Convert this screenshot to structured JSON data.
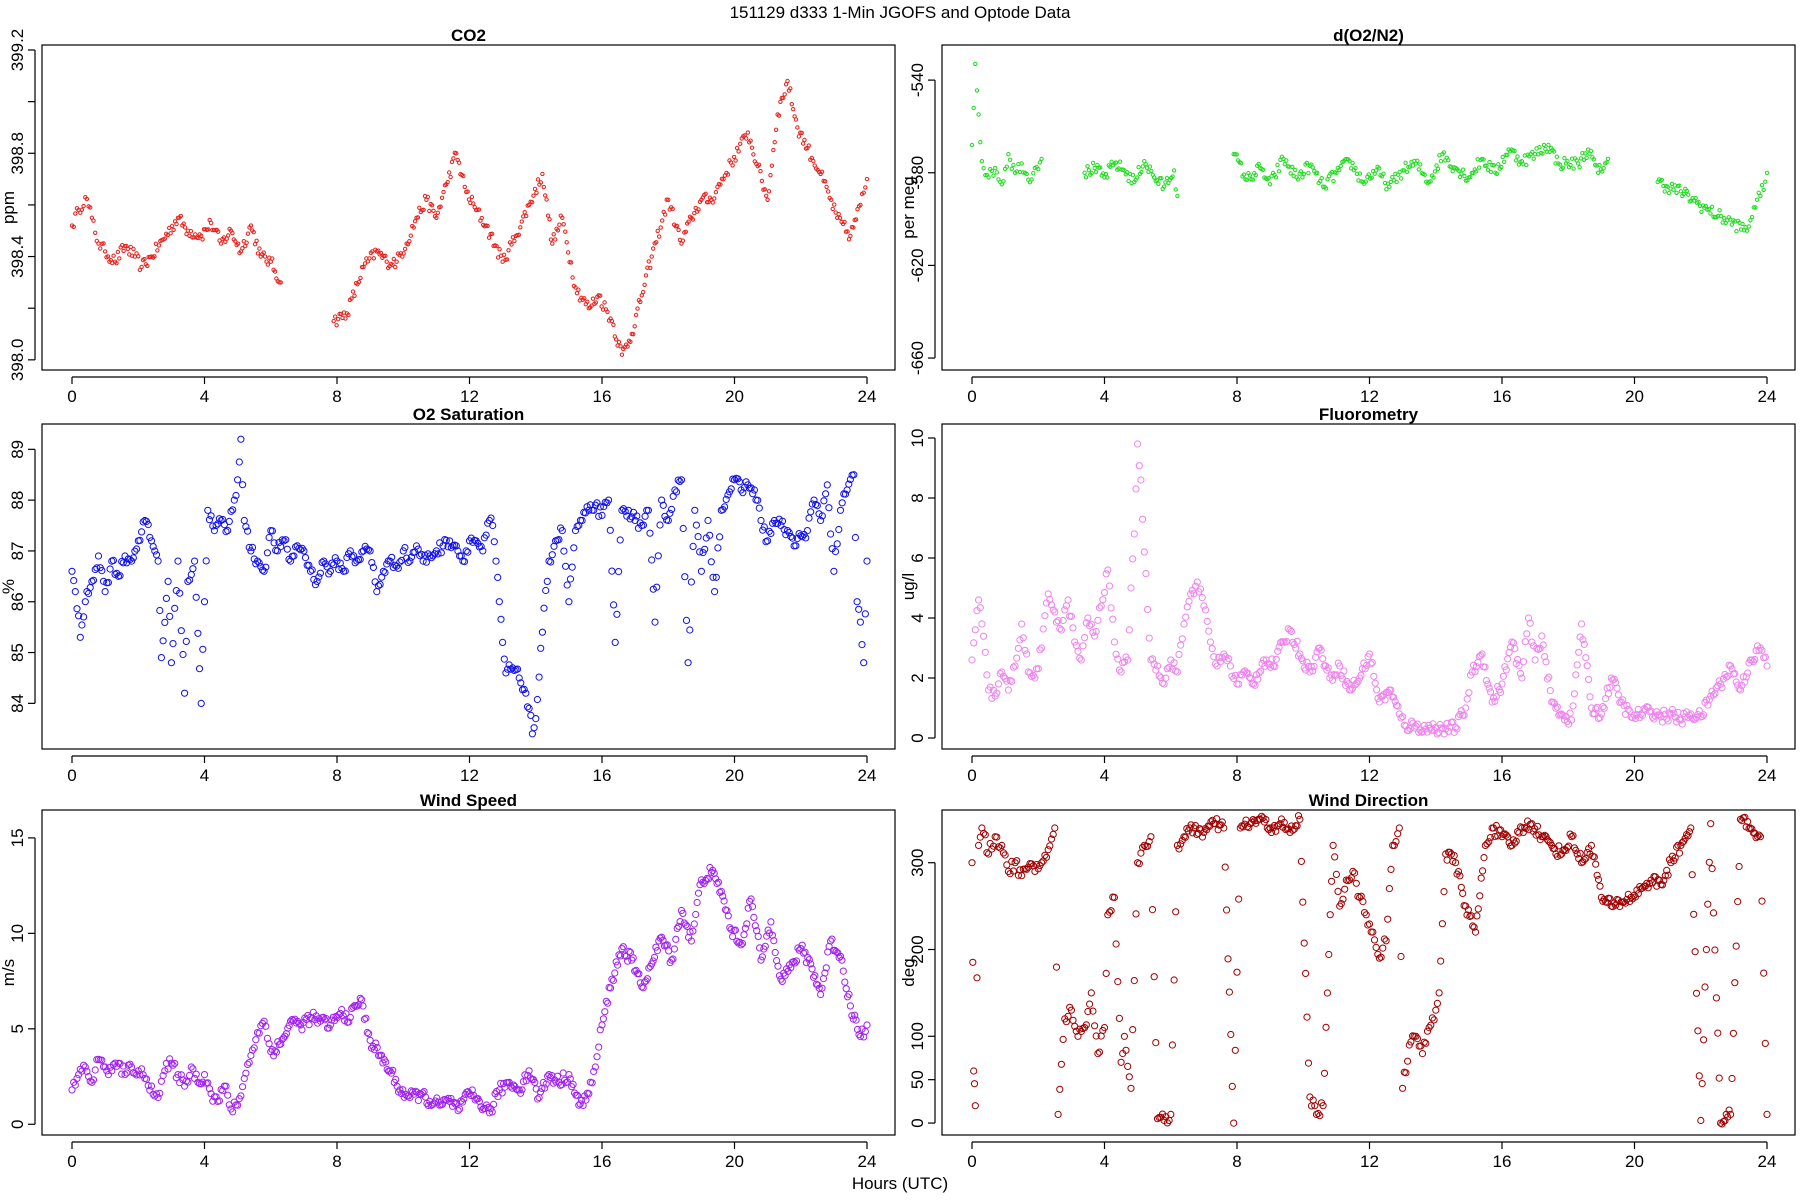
{
  "figure": {
    "title": "151129   d333   1-Min  JGOFS and Optode Data",
    "xlabel": "Hours (UTC)"
  },
  "chart_data": [
    {
      "id": "co2",
      "type": "scatter",
      "title": "CO2",
      "ylabel": "ppm",
      "color": "#e8201c",
      "xlim": [
        0,
        24
      ],
      "ylim": [
        397.98,
        399.2
      ],
      "xticks": [
        0,
        4,
        8,
        12,
        16,
        20,
        24
      ],
      "yticks": [
        398.0,
        398.2,
        398.4,
        398.6,
        398.8,
        399.0,
        399.2
      ],
      "yticklabels": [
        "398.0",
        "",
        "398.4",
        "",
        "398.8",
        "",
        "399.2"
      ],
      "x": [
        0,
        0.2,
        0.4,
        0.6,
        0.8,
        1.0,
        1.3,
        1.6,
        1.9,
        2.1,
        2.4,
        3.2,
        3.5,
        3.9,
        4.2,
        4.5,
        4.8,
        5.1,
        5.4,
        5.7,
        6.0,
        6.3,
        7.9,
        8.3,
        8.8,
        9.2,
        9.5,
        9.8,
        10.1,
        10.4,
        10.7,
        11.0,
        11.3,
        11.6,
        11.9,
        12.2,
        12.5,
        13.0,
        13.4,
        13.8,
        14.2,
        14.5,
        14.8,
        15.2,
        15.6,
        15.9,
        16.3,
        16.6,
        16.9,
        17.2,
        17.5,
        18.0,
        18.4,
        18.7,
        19.0,
        19.3,
        20.4,
        20.7,
        21.0,
        21.3,
        21.6,
        21.9,
        22.2,
        22.6,
        23.1,
        23.5,
        23.8,
        24.0
      ],
      "values": [
        398.52,
        398.58,
        398.63,
        398.55,
        398.45,
        398.42,
        398.38,
        398.44,
        398.4,
        398.36,
        398.4,
        398.55,
        398.5,
        398.48,
        398.53,
        398.45,
        398.5,
        398.42,
        398.52,
        398.4,
        398.38,
        398.3,
        398.15,
        398.18,
        398.36,
        398.42,
        398.38,
        398.38,
        398.45,
        398.55,
        398.62,
        398.55,
        398.68,
        398.8,
        398.65,
        398.58,
        398.52,
        398.38,
        398.48,
        398.6,
        398.72,
        398.45,
        398.55,
        398.28,
        398.2,
        398.25,
        398.15,
        398.02,
        398.1,
        398.25,
        398.4,
        398.62,
        398.45,
        398.55,
        398.62,
        398.62,
        398.88,
        398.75,
        398.62,
        398.95,
        399.08,
        398.9,
        398.82,
        398.72,
        398.55,
        398.48,
        398.6,
        398.7
      ]
    },
    {
      "id": "o2n2",
      "type": "scatter",
      "title": "d(O2/N2)",
      "ylabel": "per meg",
      "color": "#1fdb1f",
      "xlim": [
        0,
        24
      ],
      "ylim": [
        -663,
        -527
      ],
      "xticks": [
        0,
        4,
        8,
        12,
        16,
        20,
        24
      ],
      "yticks": [
        -540,
        -580,
        -620,
        -660
      ],
      "yticklabels": [
        "-540",
        "-580",
        "-620",
        "-660"
      ],
      "x": [
        0,
        0.1,
        0.3,
        0.5,
        0.7,
        0.9,
        1.1,
        1.3,
        1.5,
        1.7,
        1.9,
        2.1,
        3.4,
        3.7,
        4.0,
        4.3,
        4.6,
        4.9,
        5.2,
        5.5,
        5.8,
        6.1,
        6.2,
        7.9,
        8.3,
        8.7,
        9.0,
        9.4,
        9.8,
        10.2,
        10.6,
        11.0,
        11.4,
        11.8,
        12.2,
        12.6,
        13.0,
        13.4,
        13.8,
        14.2,
        14.6,
        15.0,
        15.4,
        15.8,
        16.2,
        16.6,
        17.0,
        17.4,
        17.7,
        18.3,
        18.6,
        18.9,
        19.2,
        20.7,
        21.0,
        21.4,
        21.8,
        22.2,
        23.4,
        23.6,
        23.8,
        24.0
      ],
      "values": [
        -568,
        -533,
        -575,
        -582,
        -578,
        -585,
        -572,
        -580,
        -576,
        -583,
        -578,
        -574,
        -580,
        -578,
        -582,
        -576,
        -579,
        -584,
        -575,
        -582,
        -586,
        -579,
        -590,
        -572,
        -583,
        -578,
        -585,
        -574,
        -582,
        -577,
        -586,
        -580,
        -575,
        -584,
        -579,
        -586,
        -579,
        -576,
        -584,
        -572,
        -578,
        -582,
        -574,
        -580,
        -570,
        -575,
        -572,
        -568,
        -576,
        -576,
        -570,
        -580,
        -574,
        -584,
        -586,
        -588,
        -592,
        -596,
        -605,
        -595,
        -590,
        -580
      ]
    },
    {
      "id": "o2sat",
      "type": "scatter",
      "title": "O2 Saturation",
      "ylabel": "%",
      "color": "#1010ee",
      "xlim": [
        0,
        24
      ],
      "ylim": [
        83.2,
        89.4
      ],
      "xticks": [
        0,
        4,
        8,
        12,
        16,
        20,
        24
      ],
      "yticks": [
        84,
        85,
        86,
        87,
        88,
        89
      ],
      "yticklabels": [
        "84",
        "85",
        "86",
        "87",
        "88",
        "89"
      ],
      "x": [
        0,
        0.1,
        0.25,
        0.4,
        0.6,
        0.8,
        1.0,
        1.2,
        1.4,
        1.6,
        1.8,
        2.0,
        2.2,
        2.4,
        2.6,
        2.7,
        2.9,
        3.0,
        3.2,
        3.4,
        3.5,
        3.7,
        3.9,
        4.0,
        4.1,
        4.3,
        4.5,
        4.7,
        4.9,
        5.0,
        5.1,
        5.2,
        5.4,
        5.6,
        5.8,
        6.0,
        6.2,
        6.4,
        6.6,
        6.8,
        7.0,
        7.2,
        7.4,
        7.6,
        7.8,
        8.0,
        8.2,
        8.4,
        8.6,
        8.8,
        9.0,
        9.2,
        9.4,
        9.6,
        9.8,
        10.0,
        10.2,
        10.4,
        10.6,
        10.8,
        11.0,
        11.2,
        11.4,
        11.6,
        11.8,
        12.0,
        12.2,
        12.4,
        12.6,
        12.7,
        12.8,
        12.9,
        13.0,
        13.1,
        13.3,
        13.5,
        13.7,
        13.8,
        13.9,
        14.0,
        14.2,
        14.4,
        14.6,
        14.8,
        15.0,
        15.2,
        15.4,
        15.6,
        15.8,
        16.0,
        16.2,
        16.4,
        16.6,
        16.8,
        17.0,
        17.2,
        17.4,
        17.6,
        17.8,
        18.0,
        18.2,
        18.4,
        18.6,
        18.8,
        19.0,
        19.2,
        19.4,
        19.6,
        19.8,
        20.0,
        20.2,
        20.4,
        20.6,
        20.8,
        21.0,
        21.2,
        21.4,
        21.6,
        21.8,
        22.0,
        22.2,
        22.4,
        22.6,
        22.8,
        23.0,
        23.2,
        23.4,
        23.6,
        23.7,
        23.8,
        23.9,
        24.0
      ],
      "values": [
        86.6,
        86.2,
        85.3,
        86.0,
        86.4,
        86.9,
        86.2,
        86.8,
        86.5,
        86.9,
        86.8,
        87.2,
        87.6,
        87.2,
        86.8,
        84.9,
        86.4,
        84.8,
        86.8,
        84.2,
        86.4,
        86.8,
        84.0,
        86.0,
        87.8,
        87.4,
        87.6,
        87.4,
        88.0,
        88.4,
        89.2,
        87.6,
        87.0,
        86.8,
        86.6,
        87.4,
        87.0,
        87.2,
        86.8,
        87.1,
        87.0,
        86.6,
        86.4,
        86.8,
        86.6,
        86.8,
        86.6,
        87.0,
        86.8,
        87.0,
        87.0,
        86.2,
        86.6,
        86.8,
        86.7,
        87.0,
        86.8,
        87.1,
        86.8,
        86.9,
        87.0,
        87.1,
        87.2,
        87.1,
        86.8,
        87.2,
        87.2,
        87.0,
        87.6,
        87.5,
        86.8,
        86.0,
        85.2,
        84.6,
        84.7,
        84.5,
        84.2,
        83.9,
        83.4,
        83.7,
        85.4,
        86.8,
        87.2,
        87.4,
        86.0,
        87.4,
        87.6,
        87.8,
        87.9,
        87.7,
        88.0,
        85.2,
        87.8,
        87.8,
        87.6,
        87.5,
        87.8,
        85.6,
        88.0,
        87.6,
        88.2,
        88.4,
        84.8,
        87.8,
        86.6,
        87.6,
        86.2,
        87.8,
        88.1,
        88.4,
        88.2,
        88.3,
        88.2,
        87.6,
        87.2,
        87.6,
        87.5,
        87.4,
        87.1,
        87.3,
        87.4,
        88.0,
        87.6,
        88.3,
        86.6,
        87.8,
        88.2,
        88.5,
        86.0,
        85.6,
        84.8,
        86.8
      ]
    },
    {
      "id": "fluor",
      "type": "scatter",
      "title": "Fluorometry",
      "ylabel": "ug/l",
      "color": "#ee82ee",
      "xlim": [
        0,
        24
      ],
      "ylim": [
        -0.2,
        10.3
      ],
      "xticks": [
        0,
        4,
        8,
        12,
        16,
        20,
        24
      ],
      "yticks": [
        0,
        2,
        4,
        6,
        8,
        10
      ],
      "yticklabels": [
        "0",
        "2",
        "4",
        "6",
        "8",
        "10"
      ],
      "x": [
        0,
        0.2,
        0.3,
        0.5,
        0.7,
        0.9,
        1.1,
        1.3,
        1.5,
        1.7,
        1.9,
        2.1,
        2.3,
        2.5,
        2.7,
        2.9,
        3.1,
        3.3,
        3.5,
        3.7,
        3.9,
        4.1,
        4.3,
        4.5,
        4.7,
        4.8,
        4.9,
        5.0,
        5.1,
        5.2,
        5.4,
        5.6,
        5.8,
        6.0,
        6.2,
        6.4,
        6.6,
        6.8,
        7.0,
        7.2,
        7.4,
        7.6,
        7.8,
        8.0,
        8.2,
        8.5,
        8.8,
        9.1,
        9.4,
        9.6,
        9.9,
        10.2,
        10.5,
        10.8,
        11.1,
        11.4,
        11.7,
        12.0,
        12.3,
        12.6,
        12.9,
        13.1,
        13.4,
        13.7,
        14.0,
        14.3,
        14.6,
        14.9,
        15.1,
        15.4,
        15.7,
        16.0,
        16.3,
        16.6,
        16.8,
        17.0,
        17.2,
        17.5,
        17.8,
        18.1,
        18.4,
        18.7,
        19.0,
        19.3,
        19.6,
        19.9,
        20.2,
        20.5,
        20.8,
        21.1,
        21.4,
        21.7,
        22.0,
        22.3,
        22.6,
        22.9,
        23.2,
        23.5,
        23.8,
        24.0
      ],
      "values": [
        2.6,
        4.6,
        3.8,
        1.6,
        1.4,
        2.2,
        1.6,
        2.4,
        3.8,
        2.2,
        2.0,
        3.0,
        4.8,
        4.2,
        3.6,
        4.6,
        3.2,
        2.6,
        4.0,
        3.4,
        4.4,
        5.6,
        3.2,
        2.2,
        2.6,
        5.0,
        6.8,
        9.8,
        8.6,
        6.2,
        2.6,
        2.4,
        1.8,
        2.6,
        2.2,
        3.8,
        4.8,
        5.2,
        4.4,
        3.2,
        2.4,
        2.8,
        2.4,
        1.8,
        2.2,
        1.8,
        2.6,
        2.4,
        3.2,
        3.6,
        2.8,
        2.2,
        3.0,
        2.0,
        2.4,
        1.6,
        2.0,
        2.8,
        1.2,
        1.6,
        0.8,
        0.4,
        0.4,
        0.3,
        0.35,
        0.3,
        0.35,
        1.0,
        2.2,
        2.8,
        1.2,
        1.8,
        3.2,
        2.0,
        4.0,
        2.6,
        3.4,
        1.2,
        0.8,
        0.6,
        3.8,
        1.0,
        0.8,
        2.0,
        1.2,
        0.7,
        0.8,
        0.9,
        0.7,
        0.8,
        0.6,
        0.8,
        0.7,
        1.4,
        1.8,
        2.4,
        1.6,
        2.6,
        3.0,
        2.4
      ]
    },
    {
      "id": "wspd",
      "type": "scatter",
      "title": "Wind Speed",
      "ylabel": "m/s",
      "color": "#a020f0",
      "xlim": [
        0,
        24
      ],
      "ylim": [
        -0.3,
        16.2
      ],
      "xticks": [
        0,
        4,
        8,
        12,
        16,
        20,
        24
      ],
      "yticks": [
        0,
        5,
        10,
        15
      ],
      "yticklabels": [
        "0",
        "5",
        "10",
        "15"
      ],
      "x": [
        0,
        0.2,
        0.4,
        0.6,
        0.8,
        1.0,
        1.2,
        1.4,
        1.6,
        1.8,
        2.0,
        2.2,
        2.4,
        2.6,
        2.8,
        3.0,
        3.2,
        3.4,
        3.6,
        3.8,
        4.0,
        4.2,
        4.4,
        4.6,
        4.8,
        5.0,
        5.2,
        5.4,
        5.6,
        5.8,
        6.0,
        6.3,
        6.6,
        6.9,
        7.2,
        7.5,
        7.8,
        8.1,
        8.4,
        8.7,
        9.0,
        9.3,
        9.6,
        9.9,
        10.2,
        10.5,
        10.8,
        11.1,
        11.4,
        11.7,
        12.0,
        12.3,
        12.6,
        12.9,
        13.2,
        13.5,
        13.8,
        14.1,
        14.4,
        14.7,
        15.0,
        15.3,
        15.6,
        15.8,
        16.0,
        16.3,
        16.6,
        16.9,
        17.2,
        17.5,
        17.8,
        18.1,
        18.4,
        18.7,
        19.0,
        19.3,
        19.6,
        19.9,
        20.2,
        20.5,
        20.8,
        21.1,
        21.4,
        21.7,
        22.0,
        22.3,
        22.6,
        22.9,
        23.2,
        23.5,
        23.8,
        24.0
      ],
      "values": [
        1.8,
        2.6,
        3.0,
        2.2,
        3.4,
        3.0,
        2.8,
        3.2,
        2.6,
        3.0,
        2.8,
        2.4,
        2.0,
        1.4,
        2.8,
        3.2,
        2.6,
        2.0,
        3.0,
        2.2,
        2.6,
        1.6,
        1.2,
        2.0,
        0.8,
        1.0,
        2.4,
        3.6,
        4.8,
        5.4,
        3.8,
        4.2,
        5.4,
        5.2,
        5.6,
        5.4,
        5.2,
        5.8,
        5.6,
        6.6,
        4.4,
        3.6,
        2.8,
        1.8,
        1.4,
        1.6,
        1.2,
        1.0,
        1.2,
        0.8,
        1.6,
        1.2,
        0.6,
        1.8,
        2.2,
        1.8,
        2.8,
        1.4,
        2.6,
        2.2,
        2.6,
        1.0,
        1.6,
        3.0,
        5.2,
        7.6,
        9.2,
        8.6,
        7.2,
        8.4,
        9.8,
        8.6,
        11.2,
        9.6,
        12.8,
        13.2,
        12.2,
        10.2,
        9.4,
        11.8,
        8.6,
        10.6,
        7.6,
        8.2,
        9.2,
        8.4,
        6.8,
        9.6,
        8.8,
        6.2,
        4.6,
        5.2
      ]
    },
    {
      "id": "wdir",
      "type": "scatter",
      "title": "Wind Direction",
      "ylabel": "deg",
      "color": "#a00000",
      "xlim": [
        0,
        24
      ],
      "ylim": [
        -8,
        355
      ],
      "xticks": [
        0,
        4,
        8,
        12,
        16,
        20,
        24
      ],
      "yticks": [
        0,
        50,
        100,
        200,
        300
      ],
      "yticklabels": [
        "0",
        "50",
        "100",
        "200",
        "300"
      ],
      "x": [
        0,
        0.05,
        0.1,
        0.2,
        0.3,
        0.5,
        0.7,
        0.9,
        1.1,
        1.3,
        1.5,
        1.7,
        1.9,
        2.1,
        2.3,
        2.5,
        2.6,
        2.8,
        3.0,
        3.2,
        3.4,
        3.6,
        3.8,
        4.0,
        4.1,
        4.3,
        4.5,
        4.6,
        4.8,
        5.0,
        5.2,
        5.4,
        5.6,
        5.8,
        6.0,
        6.2,
        6.4,
        6.7,
        7.0,
        7.3,
        7.6,
        7.9,
        8.1,
        8.4,
        8.7,
        9.0,
        9.3,
        9.6,
        9.9,
        10.2,
        10.4,
        10.6,
        10.9,
        11.1,
        11.3,
        11.5,
        11.7,
        11.9,
        12.1,
        12.3,
        12.5,
        12.7,
        12.9,
        13.0,
        13.2,
        13.4,
        13.6,
        13.8,
        14.0,
        14.1,
        14.3,
        14.6,
        14.9,
        15.2,
        15.5,
        15.7,
        16.0,
        16.3,
        16.6,
        16.9,
        17.2,
        17.5,
        17.8,
        18.1,
        18.4,
        18.7,
        19.0,
        19.3,
        19.6,
        19.9,
        20.2,
        20.5,
        20.8,
        21.1,
        21.4,
        21.7,
        22.0,
        22.3,
        22.6,
        22.9,
        23.2,
        23.5,
        23.8,
        24.0
      ],
      "values": [
        300,
        60,
        20,
        320,
        340,
        310,
        330,
        320,
        290,
        300,
        285,
        295,
        290,
        300,
        315,
        340,
        10,
        120,
        130,
        100,
        110,
        150,
        80,
        110,
        240,
        260,
        70,
        100,
        40,
        300,
        320,
        330,
        5,
        3,
        10,
        320,
        330,
        340,
        335,
        345,
        340,
        0,
        340,
        345,
        350,
        340,
        345,
        335,
        350,
        30,
        10,
        20,
        320,
        250,
        280,
        290,
        260,
        240,
        220,
        190,
        210,
        320,
        340,
        40,
        90,
        100,
        80,
        110,
        130,
        150,
        310,
        300,
        250,
        220,
        320,
        340,
        330,
        320,
        340,
        345,
        330,
        320,
        310,
        330,
        300,
        320,
        260,
        250,
        255,
        260,
        270,
        280,
        275,
        300,
        320,
        340,
        3,
        345,
        0,
        10,
        350,
        340,
        330,
        10
      ]
    }
  ]
}
